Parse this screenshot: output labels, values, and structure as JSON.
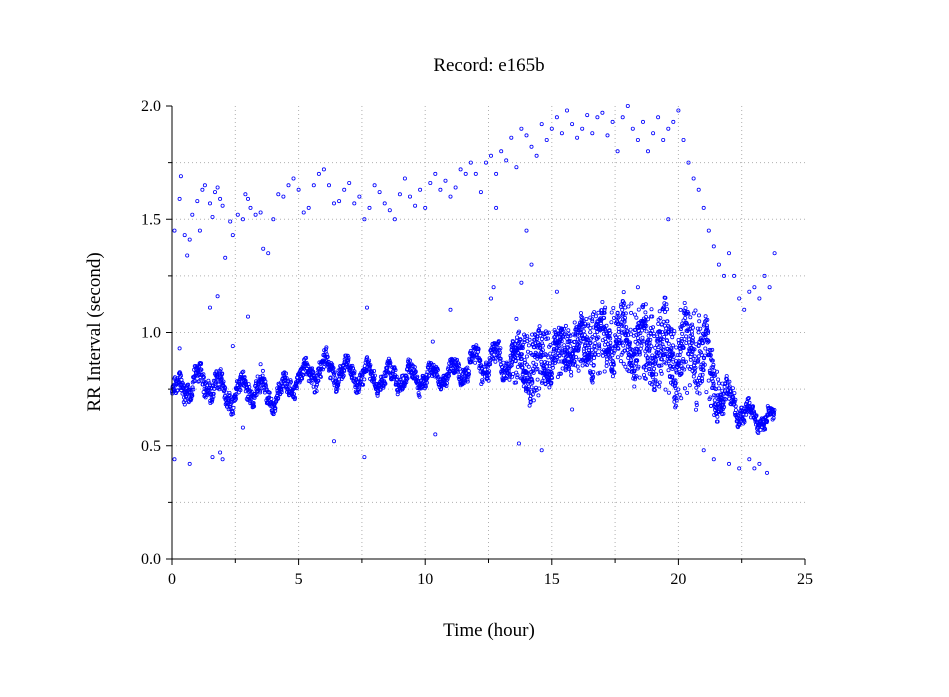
{
  "chart_data": {
    "type": "scatter",
    "title": "Record:  e165b",
    "xlabel": "Time (hour)",
    "ylabel": "RR Interval (second)",
    "xlim": [
      0,
      25
    ],
    "ylim": [
      0,
      2.0
    ],
    "x_ticks": [
      "0",
      "5",
      "10",
      "15",
      "20",
      "25"
    ],
    "y_ticks": [
      "0.0",
      "0.5",
      "1.0",
      "1.5",
      "2.0"
    ],
    "grid": true,
    "marker": "open-circle",
    "series_color": "#0000ff",
    "band": {
      "description_points_hours": [
        0,
        0.5,
        1,
        1.5,
        2,
        2.5,
        3,
        3.5,
        4,
        5,
        6,
        7,
        8,
        9,
        10,
        11,
        12,
        13,
        13.8,
        14.2,
        15,
        16,
        17,
        18,
        19,
        20,
        21,
        21.5,
        22,
        22.5,
        23,
        23.5,
        23.8
      ],
      "center": [
        0.72,
        0.76,
        0.78,
        0.78,
        0.74,
        0.72,
        0.76,
        0.74,
        0.71,
        0.8,
        0.84,
        0.82,
        0.8,
        0.8,
        0.8,
        0.82,
        0.86,
        0.88,
        0.88,
        0.84,
        0.9,
        0.94,
        0.96,
        0.98,
        0.94,
        0.9,
        0.92,
        0.72,
        0.7,
        0.66,
        0.62,
        0.62,
        0.62
      ],
      "spread": [
        0.06,
        0.07,
        0.07,
        0.07,
        0.08,
        0.07,
        0.07,
        0.07,
        0.06,
        0.06,
        0.07,
        0.06,
        0.06,
        0.06,
        0.06,
        0.05,
        0.08,
        0.08,
        0.1,
        0.14,
        0.1,
        0.1,
        0.14,
        0.14,
        0.16,
        0.18,
        0.18,
        0.1,
        0.08,
        0.06,
        0.05,
        0.05,
        0.05
      ]
    },
    "outliers": [
      [
        0.1,
        1.45
      ],
      [
        0.3,
        1.59
      ],
      [
        0.35,
        1.69
      ],
      [
        0.5,
        1.43
      ],
      [
        0.7,
        1.41
      ],
      [
        0.6,
        1.34
      ],
      [
        0.8,
        1.52
      ],
      [
        1.0,
        1.58
      ],
      [
        1.1,
        1.45
      ],
      [
        1.2,
        1.63
      ],
      [
        1.3,
        1.65
      ],
      [
        1.5,
        1.57
      ],
      [
        1.6,
        1.51
      ],
      [
        1.7,
        1.62
      ],
      [
        1.8,
        1.64
      ],
      [
        1.9,
        1.59
      ],
      [
        2.0,
        1.56
      ],
      [
        2.1,
        1.33
      ],
      [
        2.3,
        1.49
      ],
      [
        2.4,
        1.43
      ],
      [
        2.6,
        1.52
      ],
      [
        2.8,
        1.5
      ],
      [
        2.9,
        1.61
      ],
      [
        3.0,
        1.59
      ],
      [
        3.1,
        1.55
      ],
      [
        3.3,
        1.52
      ],
      [
        3.5,
        1.53
      ],
      [
        3.6,
        1.37
      ],
      [
        3.8,
        1.35
      ],
      [
        4.0,
        1.5
      ],
      [
        4.2,
        1.61
      ],
      [
        4.4,
        1.6
      ],
      [
        4.6,
        1.65
      ],
      [
        4.8,
        1.68
      ],
      [
        5.0,
        1.63
      ],
      [
        5.2,
        1.53
      ],
      [
        5.4,
        1.55
      ],
      [
        5.6,
        1.65
      ],
      [
        5.8,
        1.7
      ],
      [
        6.0,
        1.72
      ],
      [
        6.2,
        1.65
      ],
      [
        6.4,
        1.57
      ],
      [
        6.6,
        1.58
      ],
      [
        6.8,
        1.63
      ],
      [
        7.0,
        1.66
      ],
      [
        7.2,
        1.57
      ],
      [
        7.4,
        1.6
      ],
      [
        7.6,
        1.5
      ],
      [
        7.8,
        1.55
      ],
      [
        8.0,
        1.65
      ],
      [
        8.2,
        1.62
      ],
      [
        8.4,
        1.57
      ],
      [
        8.6,
        1.54
      ],
      [
        8.8,
        1.5
      ],
      [
        9.0,
        1.61
      ],
      [
        9.2,
        1.68
      ],
      [
        9.4,
        1.6
      ],
      [
        9.6,
        1.56
      ],
      [
        9.8,
        1.63
      ],
      [
        10.0,
        1.55
      ],
      [
        10.2,
        1.66
      ],
      [
        10.4,
        1.7
      ],
      [
        10.6,
        1.63
      ],
      [
        10.8,
        1.67
      ],
      [
        11.0,
        1.6
      ],
      [
        11.2,
        1.64
      ],
      [
        11.4,
        1.72
      ],
      [
        11.6,
        1.7
      ],
      [
        11.8,
        1.75
      ],
      [
        12.0,
        1.7
      ],
      [
        12.2,
        1.62
      ],
      [
        12.4,
        1.75
      ],
      [
        12.6,
        1.78
      ],
      [
        12.8,
        1.7
      ],
      [
        13.0,
        1.8
      ],
      [
        13.2,
        1.76
      ],
      [
        13.4,
        1.86
      ],
      [
        13.6,
        1.73
      ],
      [
        13.8,
        1.9
      ],
      [
        14.0,
        1.87
      ],
      [
        14.2,
        1.82
      ],
      [
        14.4,
        1.78
      ],
      [
        14.6,
        1.92
      ],
      [
        14.8,
        1.85
      ],
      [
        15.0,
        1.9
      ],
      [
        15.2,
        1.95
      ],
      [
        15.4,
        1.88
      ],
      [
        15.6,
        1.98
      ],
      [
        15.8,
        1.92
      ],
      [
        16.0,
        1.86
      ],
      [
        16.2,
        1.9
      ],
      [
        16.4,
        1.96
      ],
      [
        16.6,
        1.88
      ],
      [
        16.8,
        1.95
      ],
      [
        17.0,
        1.97
      ],
      [
        17.2,
        1.87
      ],
      [
        17.4,
        1.93
      ],
      [
        17.6,
        1.8
      ],
      [
        17.8,
        1.95
      ],
      [
        18.0,
        2.0
      ],
      [
        18.2,
        1.9
      ],
      [
        18.4,
        1.85
      ],
      [
        18.6,
        1.93
      ],
      [
        18.8,
        1.8
      ],
      [
        19.0,
        1.88
      ],
      [
        19.2,
        1.95
      ],
      [
        19.4,
        1.85
      ],
      [
        19.6,
        1.9
      ],
      [
        19.8,
        1.93
      ],
      [
        20.0,
        1.98
      ],
      [
        20.2,
        1.85
      ],
      [
        20.4,
        1.75
      ],
      [
        20.6,
        1.68
      ],
      [
        20.8,
        1.63
      ],
      [
        21.0,
        1.55
      ],
      [
        21.2,
        1.45
      ],
      [
        21.4,
        1.38
      ],
      [
        21.6,
        1.3
      ],
      [
        21.8,
        1.25
      ],
      [
        22.0,
        1.35
      ],
      [
        22.2,
        1.25
      ],
      [
        22.4,
        1.15
      ],
      [
        22.6,
        1.1
      ],
      [
        22.8,
        1.18
      ],
      [
        23.0,
        1.2
      ],
      [
        23.2,
        1.15
      ],
      [
        23.4,
        1.25
      ],
      [
        23.6,
        1.2
      ],
      [
        23.8,
        1.35
      ],
      [
        0.1,
        0.44
      ],
      [
        0.3,
        0.93
      ],
      [
        0.7,
        0.42
      ],
      [
        1.5,
        1.11
      ],
      [
        1.8,
        1.16
      ],
      [
        1.9,
        0.47
      ],
      [
        2.0,
        0.44
      ],
      [
        1.6,
        0.45
      ],
      [
        2.4,
        0.94
      ],
      [
        2.8,
        0.58
      ],
      [
        3.0,
        1.07
      ],
      [
        3.5,
        0.86
      ],
      [
        6.4,
        0.52
      ],
      [
        7.6,
        0.45
      ],
      [
        7.7,
        1.11
      ],
      [
        10.4,
        0.55
      ],
      [
        10.3,
        0.96
      ],
      [
        11.0,
        1.1
      ],
      [
        12.6,
        1.15
      ],
      [
        12.7,
        1.2
      ],
      [
        12.8,
        1.55
      ],
      [
        13.6,
        1.06
      ],
      [
        13.8,
        1.22
      ],
      [
        13.7,
        0.51
      ],
      [
        14.0,
        1.45
      ],
      [
        14.2,
        1.3
      ],
      [
        14.6,
        0.48
      ],
      [
        15.2,
        1.18
      ],
      [
        15.8,
        0.66
      ],
      [
        16.6,
        1.05
      ],
      [
        18.4,
        1.2
      ],
      [
        19.6,
        1.5
      ],
      [
        21.0,
        0.48
      ],
      [
        21.4,
        0.44
      ],
      [
        22.0,
        0.42
      ],
      [
        22.4,
        0.4
      ],
      [
        22.8,
        0.44
      ],
      [
        23.0,
        0.4
      ],
      [
        23.2,
        0.42
      ],
      [
        23.5,
        0.38
      ]
    ]
  }
}
